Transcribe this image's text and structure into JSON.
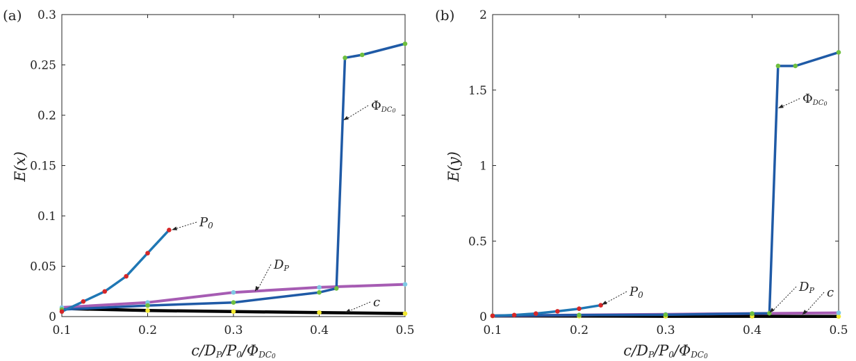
{
  "chart_data": [
    {
      "type": "line",
      "panel_label": "(a)",
      "xlabel": "c/D_P/P_0/Φ_DC0",
      "ylabel": "E(x)",
      "xlim": [
        0.1,
        0.5
      ],
      "ylim": [
        0,
        0.3
      ],
      "xticks": [
        "0.1",
        "0.2",
        "0.3",
        "0.4",
        "0.5"
      ],
      "yticks": [
        "0",
        "0.05",
        "0.1",
        "0.15",
        "0.2",
        "0.25",
        "0.3"
      ],
      "grid": false,
      "series": [
        {
          "name": "P0",
          "color": "#1f77b4",
          "marker_color": "#d62728",
          "label_text": "P",
          "x": [
            0.1,
            0.125,
            0.15,
            0.175,
            0.2,
            0.225
          ],
          "y": [
            0.005,
            0.015,
            0.025,
            0.04,
            0.063,
            0.086
          ]
        },
        {
          "name": "DP",
          "color": "#a65cb3",
          "marker_color": "#7ec8e3",
          "label_text": "D",
          "x": [
            0.1,
            0.2,
            0.3,
            0.4,
            0.5
          ],
          "y": [
            0.009,
            0.014,
            0.024,
            0.029,
            0.032
          ]
        },
        {
          "name": "ΦDC0",
          "color": "#1f5aa6",
          "marker_color": "#6fbf3f",
          "label_text": "Φ",
          "x": [
            0.1,
            0.2,
            0.3,
            0.4,
            0.42,
            0.43,
            0.45,
            0.5
          ],
          "y": [
            0.007,
            0.011,
            0.014,
            0.024,
            0.028,
            0.257,
            0.26,
            0.271
          ]
        },
        {
          "name": "c",
          "color": "#000000",
          "marker_color": "#f2e830",
          "label_text": "c",
          "x": [
            0.1,
            0.2,
            0.3,
            0.4,
            0.5
          ],
          "y": [
            0.008,
            0.006,
            0.005,
            0.004,
            0.003
          ]
        }
      ]
    },
    {
      "type": "line",
      "panel_label": "(b)",
      "xlabel": "c/D_P/P_0/Φ_DC0",
      "ylabel": "E(y)",
      "xlim": [
        0.1,
        0.5
      ],
      "ylim": [
        0,
        2
      ],
      "xticks": [
        "0.1",
        "0.2",
        "0.3",
        "0.4",
        "0.5"
      ],
      "yticks": [
        "0",
        "0.5",
        "1",
        "1.5",
        "2"
      ],
      "grid": false,
      "series": [
        {
          "name": "P0",
          "color": "#1f77b4",
          "marker_color": "#d62728",
          "label_text": "P",
          "x": [
            0.1,
            0.125,
            0.15,
            0.175,
            0.2,
            0.225
          ],
          "y": [
            0.005,
            0.01,
            0.02,
            0.035,
            0.052,
            0.075
          ]
        },
        {
          "name": "DP",
          "color": "#a65cb3",
          "marker_color": "#7ec8e3",
          "label_text": "D",
          "x": [
            0.1,
            0.2,
            0.3,
            0.4,
            0.5
          ],
          "y": [
            0.005,
            0.01,
            0.015,
            0.02,
            0.025
          ]
        },
        {
          "name": "ΦDC0",
          "color": "#1f5aa6",
          "marker_color": "#6fbf3f",
          "label_text": "Φ",
          "x": [
            0.1,
            0.2,
            0.3,
            0.4,
            0.42,
            0.43,
            0.45,
            0.5
          ],
          "y": [
            0.006,
            0.01,
            0.012,
            0.02,
            0.022,
            1.66,
            1.66,
            1.75
          ]
        },
        {
          "name": "c",
          "color": "#000000",
          "marker_color": "#f2e830",
          "label_text": "c",
          "x": [
            0.1,
            0.2,
            0.3,
            0.4,
            0.5
          ],
          "y": [
            0.004,
            0.003,
            0.002,
            0.002,
            0.001
          ]
        }
      ]
    }
  ]
}
